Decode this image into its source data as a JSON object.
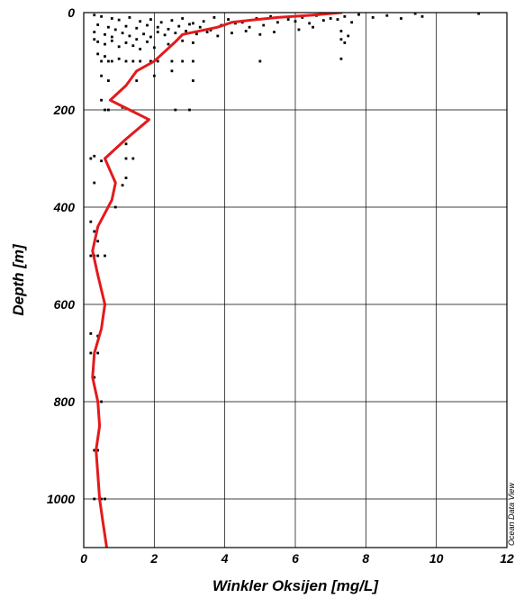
{
  "chart_data": {
    "type": "scatter",
    "xlabel": "Winkler Oksijen [mg/L]",
    "ylabel": "Depth [m]",
    "xlim": [
      0,
      12
    ],
    "ylim": [
      1100,
      0
    ],
    "y_inverted": true,
    "grid": true,
    "x_ticks": [
      "0",
      "2",
      "4",
      "6",
      "8",
      "10",
      "12"
    ],
    "y_ticks": [
      "0",
      "200",
      "400",
      "600",
      "800",
      "1000"
    ],
    "watermark": "Ocean Data View",
    "colors": {
      "points": "#000000",
      "line": "#e31a1c",
      "grid": "#000000"
    },
    "series": [
      {
        "kind": "points",
        "points": [
          [
            0.3,
            5
          ],
          [
            0.5,
            8
          ],
          [
            0.8,
            12
          ],
          [
            1.0,
            15
          ],
          [
            1.3,
            10
          ],
          [
            1.6,
            18
          ],
          [
            1.9,
            14
          ],
          [
            2.2,
            20
          ],
          [
            2.5,
            16
          ],
          [
            2.8,
            12
          ],
          [
            3.1,
            22
          ],
          [
            3.4,
            18
          ],
          [
            3.7,
            10
          ],
          [
            4.1,
            14
          ],
          [
            4.5,
            20
          ],
          [
            4.9,
            12
          ],
          [
            5.3,
            8
          ],
          [
            5.8,
            14
          ],
          [
            6.2,
            10
          ],
          [
            6.6,
            6
          ],
          [
            7.0,
            12
          ],
          [
            7.4,
            8
          ],
          [
            7.8,
            4
          ],
          [
            8.2,
            10
          ],
          [
            8.6,
            6
          ],
          [
            9.0,
            12
          ],
          [
            9.4,
            2
          ],
          [
            9.6,
            8
          ],
          [
            11.2,
            2
          ],
          [
            0.4,
            25
          ],
          [
            0.7,
            30
          ],
          [
            0.9,
            35
          ],
          [
            1.2,
            28
          ],
          [
            1.5,
            32
          ],
          [
            1.8,
            26
          ],
          [
            2.1,
            30
          ],
          [
            2.4,
            34
          ],
          [
            2.7,
            28
          ],
          [
            3.0,
            24
          ],
          [
            3.3,
            30
          ],
          [
            3.6,
            36
          ],
          [
            3.9,
            26
          ],
          [
            4.3,
            22
          ],
          [
            4.7,
            30
          ],
          [
            5.1,
            26
          ],
          [
            5.5,
            20
          ],
          [
            6.0,
            18
          ],
          [
            6.4,
            22
          ],
          [
            6.8,
            16
          ],
          [
            7.2,
            14
          ],
          [
            7.6,
            20
          ],
          [
            0.3,
            40
          ],
          [
            0.6,
            45
          ],
          [
            0.8,
            50
          ],
          [
            1.1,
            42
          ],
          [
            1.3,
            48
          ],
          [
            1.5,
            55
          ],
          [
            1.7,
            44
          ],
          [
            1.9,
            50
          ],
          [
            2.1,
            40
          ],
          [
            2.3,
            46
          ],
          [
            2.6,
            42
          ],
          [
            2.9,
            38
          ],
          [
            3.2,
            44
          ],
          [
            3.5,
            40
          ],
          [
            3.8,
            48
          ],
          [
            4.2,
            42
          ],
          [
            4.6,
            38
          ],
          [
            5.0,
            45
          ],
          [
            5.4,
            40
          ],
          [
            6.1,
            35
          ],
          [
            6.5,
            30
          ],
          [
            7.3,
            38
          ],
          [
            7.5,
            48
          ],
          [
            0.3,
            55
          ],
          [
            0.4,
            60
          ],
          [
            0.6,
            65
          ],
          [
            0.8,
            58
          ],
          [
            1.0,
            70
          ],
          [
            1.2,
            62
          ],
          [
            1.4,
            68
          ],
          [
            1.6,
            75
          ],
          [
            1.8,
            60
          ],
          [
            2.0,
            72
          ],
          [
            2.4,
            65
          ],
          [
            2.8,
            58
          ],
          [
            3.1,
            62
          ],
          [
            7.3,
            55
          ],
          [
            7.4,
            62
          ],
          [
            0.4,
            85
          ],
          [
            0.6,
            90
          ],
          [
            0.7,
            100
          ],
          [
            1.0,
            95
          ],
          [
            1.2,
            100
          ],
          [
            1.4,
            100
          ],
          [
            1.6,
            100
          ],
          [
            1.9,
            100
          ],
          [
            2.1,
            100
          ],
          [
            2.5,
            100
          ],
          [
            2.8,
            100
          ],
          [
            3.1,
            100
          ],
          [
            0.5,
            100
          ],
          [
            0.8,
            100
          ],
          [
            5.0,
            100
          ],
          [
            7.3,
            95
          ],
          [
            0.5,
            130
          ],
          [
            0.7,
            140
          ],
          [
            1.5,
            140
          ],
          [
            2.0,
            130
          ],
          [
            2.5,
            120
          ],
          [
            3.1,
            140
          ],
          [
            0.5,
            180
          ],
          [
            0.6,
            200
          ],
          [
            0.7,
            200
          ],
          [
            1.1,
            195
          ],
          [
            2.6,
            200
          ],
          [
            3.0,
            200
          ],
          [
            1.2,
            270
          ],
          [
            1.2,
            300
          ],
          [
            1.4,
            300
          ],
          [
            0.2,
            300
          ],
          [
            0.3,
            295
          ],
          [
            0.5,
            305
          ],
          [
            1.2,
            340
          ],
          [
            1.1,
            355
          ],
          [
            0.3,
            350
          ],
          [
            0.9,
            400
          ],
          [
            0.2,
            430
          ],
          [
            0.3,
            450
          ],
          [
            0.4,
            470
          ],
          [
            0.2,
            500
          ],
          [
            0.3,
            500
          ],
          [
            0.4,
            500
          ],
          [
            0.6,
            500
          ],
          [
            0.6,
            600
          ],
          [
            0.2,
            660
          ],
          [
            0.4,
            665
          ],
          [
            0.2,
            700
          ],
          [
            0.4,
            700
          ],
          [
            0.3,
            750
          ],
          [
            0.5,
            800
          ],
          [
            0.3,
            900
          ],
          [
            0.4,
            900
          ],
          [
            0.3,
            1000
          ],
          [
            0.5,
            1000
          ],
          [
            0.6,
            1000
          ]
        ]
      },
      {
        "kind": "line",
        "points": [
          [
            7.3,
            0
          ],
          [
            6.5,
            5
          ],
          [
            5.5,
            10
          ],
          [
            4.8,
            15
          ],
          [
            4.2,
            20
          ],
          [
            3.8,
            30
          ],
          [
            2.8,
            45
          ],
          [
            2.6,
            60
          ],
          [
            2.3,
            80
          ],
          [
            2.0,
            100
          ],
          [
            1.5,
            120
          ],
          [
            1.2,
            150
          ],
          [
            0.75,
            180
          ],
          [
            1.3,
            200
          ],
          [
            1.85,
            220
          ],
          [
            1.2,
            260
          ],
          [
            0.6,
            300
          ],
          [
            0.9,
            350
          ],
          [
            0.8,
            385
          ],
          [
            0.4,
            440
          ],
          [
            0.25,
            490
          ],
          [
            0.4,
            540
          ],
          [
            0.6,
            600
          ],
          [
            0.5,
            650
          ],
          [
            0.3,
            700
          ],
          [
            0.25,
            750
          ],
          [
            0.4,
            800
          ],
          [
            0.45,
            850
          ],
          [
            0.35,
            900
          ],
          [
            0.4,
            950
          ],
          [
            0.45,
            1000
          ],
          [
            0.55,
            1050
          ],
          [
            0.65,
            1100
          ]
        ]
      }
    ]
  }
}
